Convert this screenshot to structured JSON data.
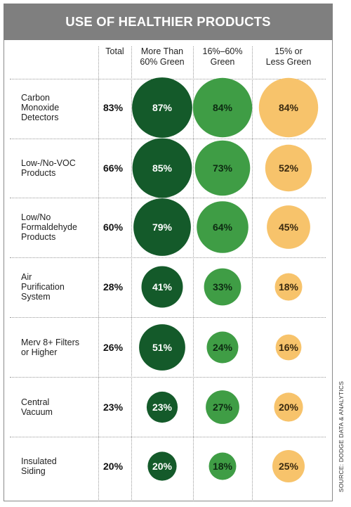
{
  "title": "USE OF HEALTHIER PRODUCTS",
  "source": "SOURCE: DODGE DATA & ANALYTICS",
  "colors": {
    "title_bar": "#7f7f7f",
    "more_than_60": "#145a2a",
    "mid_16_60": "#3f9d45",
    "less_15": "#f7c36b"
  },
  "chart_data": {
    "type": "bubble-table",
    "title": "USE OF HEALTHIER PRODUCTS",
    "columns": [
      "Total",
      "More Than\n60% Green",
      "16%–60%\nGreen",
      "15% or\nLess Green"
    ],
    "categories": [
      "Carbon\nMonoxide\nDetectors",
      "Low-/No-VOC\nProducts",
      "Low/No\nFormaldehyde\nProducts",
      "Air\nPurification\nSystem",
      "Merv 8+ Filters\nor Higher",
      "Central\nVacuum",
      "Insulated\nSiding"
    ],
    "total": [
      83,
      66,
      60,
      28,
      26,
      23,
      20
    ],
    "series": [
      {
        "name": "More Than 60% Green",
        "values": [
          87,
          85,
          79,
          41,
          51,
          23,
          20
        ]
      },
      {
        "name": "16%–60% Green",
        "values": [
          84,
          73,
          64,
          33,
          24,
          27,
          18
        ]
      },
      {
        "name": "15% or Less Green",
        "values": [
          84,
          52,
          45,
          18,
          16,
          20,
          25
        ]
      }
    ],
    "unit": "%"
  }
}
